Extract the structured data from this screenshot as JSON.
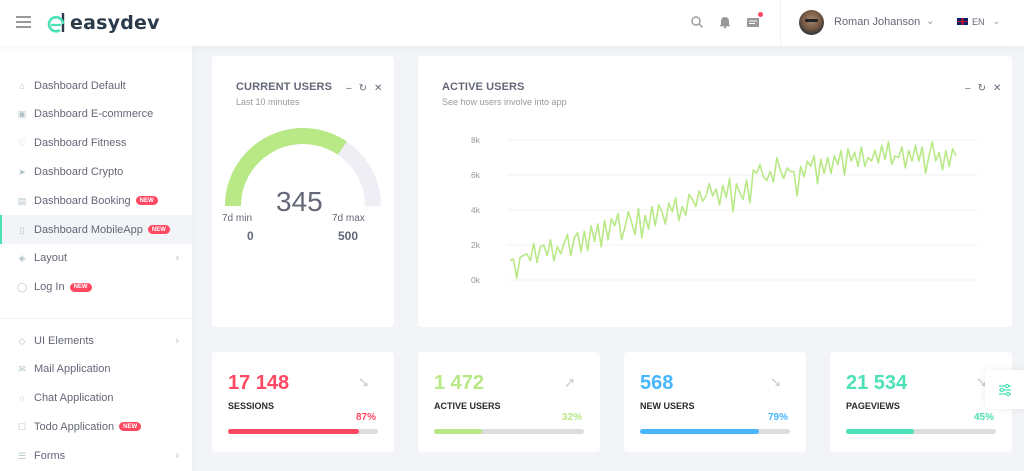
{
  "app": {
    "logo_text": "easydev"
  },
  "header": {
    "user_name": "Roman Johanson",
    "language": "EN"
  },
  "sidebar": {
    "items": [
      {
        "label": "Dashboard Default",
        "icon": "home-icon"
      },
      {
        "label": "Dashboard E-commerce",
        "icon": "store-icon"
      },
      {
        "label": "Dashboard Fitness",
        "icon": "heart-icon"
      },
      {
        "label": "Dashboard Crypto",
        "icon": "rocket-icon"
      },
      {
        "label": "Dashboard Booking",
        "icon": "book-icon",
        "badge": "NEW"
      },
      {
        "label": "Dashboard MobileApp",
        "icon": "phone-icon",
        "badge": "NEW",
        "active": true
      },
      {
        "label": "Layout",
        "icon": "layers-icon",
        "chevron": true
      },
      {
        "label": "Log In",
        "icon": "user-icon",
        "badge": "NEW"
      }
    ],
    "items2": [
      {
        "label": "UI Elements",
        "icon": "diamond-icon",
        "chevron": true
      },
      {
        "label": "Mail Application",
        "icon": "mail-icon"
      },
      {
        "label": "Chat Application",
        "icon": "chat-icon"
      },
      {
        "label": "Todo Application",
        "icon": "todo-icon",
        "badge": "NEW"
      },
      {
        "label": "Forms",
        "icon": "forms-icon",
        "chevron": true
      }
    ]
  },
  "current_users": {
    "title": "CURRENT USERS",
    "subtitle": "Last 10 minutes",
    "value": "345",
    "min_label": "7d min",
    "min_value": "0",
    "max_label": "7d max",
    "max_value": "500",
    "fraction": 0.69,
    "color": "#b8e986"
  },
  "active_users_chart": {
    "title": "ACTIVE USERS",
    "subtitle": "See how users involve into app"
  },
  "chart_data": {
    "type": "line",
    "title": "ACTIVE USERS",
    "ylim": [
      0,
      8000
    ],
    "yticks": [
      "0k",
      "2k",
      "4k",
      "6k",
      "8k"
    ],
    "grid": true,
    "series": [
      {
        "color": "#b8e986",
        "values": [
          1100,
          1200,
          100,
          1300,
          1400,
          1500,
          1100,
          2100,
          1000,
          1900,
          2000,
          1400,
          2300,
          1100,
          1900,
          1500,
          2100,
          2600,
          1400,
          2400,
          2700,
          1600,
          2800,
          1700,
          3100,
          2200,
          3200,
          1900,
          3400,
          2300,
          3500,
          3100,
          3800,
          2300,
          3000,
          3900,
          3300,
          2600,
          4100,
          2400,
          3700,
          2900,
          4200,
          3100,
          4300,
          3900,
          3200,
          4400,
          3900,
          4700,
          3400,
          4200,
          3700,
          4900,
          4600,
          4200,
          5100,
          4500,
          4800,
          5500,
          4800,
          5200,
          4300,
          5400,
          4700,
          5800,
          3900,
          5500,
          5000,
          4600,
          5700,
          4400,
          6300,
          6100,
          6600,
          5900,
          5700,
          6200,
          5600,
          7000,
          6300,
          5800,
          6400,
          6200,
          6200,
          4800,
          6500,
          5900,
          6800,
          6500,
          7100,
          5500,
          6900,
          6100,
          7000,
          6100,
          7100,
          6600,
          7400,
          6000,
          7500,
          6800,
          7300,
          6500,
          7600,
          6500,
          7000,
          6800,
          7400,
          6700,
          7700,
          6900,
          7900,
          6600,
          7100,
          7000,
          7600,
          6400,
          7400,
          6800,
          7700,
          6800,
          7600,
          6100,
          7100,
          7900,
          6800,
          7300,
          6300,
          7400,
          6500,
          7500,
          7100
        ]
      }
    ]
  },
  "stats": [
    {
      "value": "17 148",
      "label": "SESSIONS",
      "percent": "87%",
      "fill": 0.87,
      "color": "#ff4861",
      "trend": "trend-down-icon"
    },
    {
      "value": "1 472",
      "label": "ACTIVE USERS",
      "percent": "32%",
      "fill": 0.32,
      "color": "#b8e986",
      "trend": "trend-up-icon"
    },
    {
      "value": "568",
      "label": "NEW USERS",
      "percent": "79%",
      "fill": 0.79,
      "color": "#48b5ff",
      "trend": "trend-down-icon"
    },
    {
      "value": "21 534",
      "label": "PAGEVIEWS",
      "percent": "45%",
      "fill": 0.45,
      "color": "#4ce1b6",
      "trend": "trend-down-icon"
    }
  ]
}
